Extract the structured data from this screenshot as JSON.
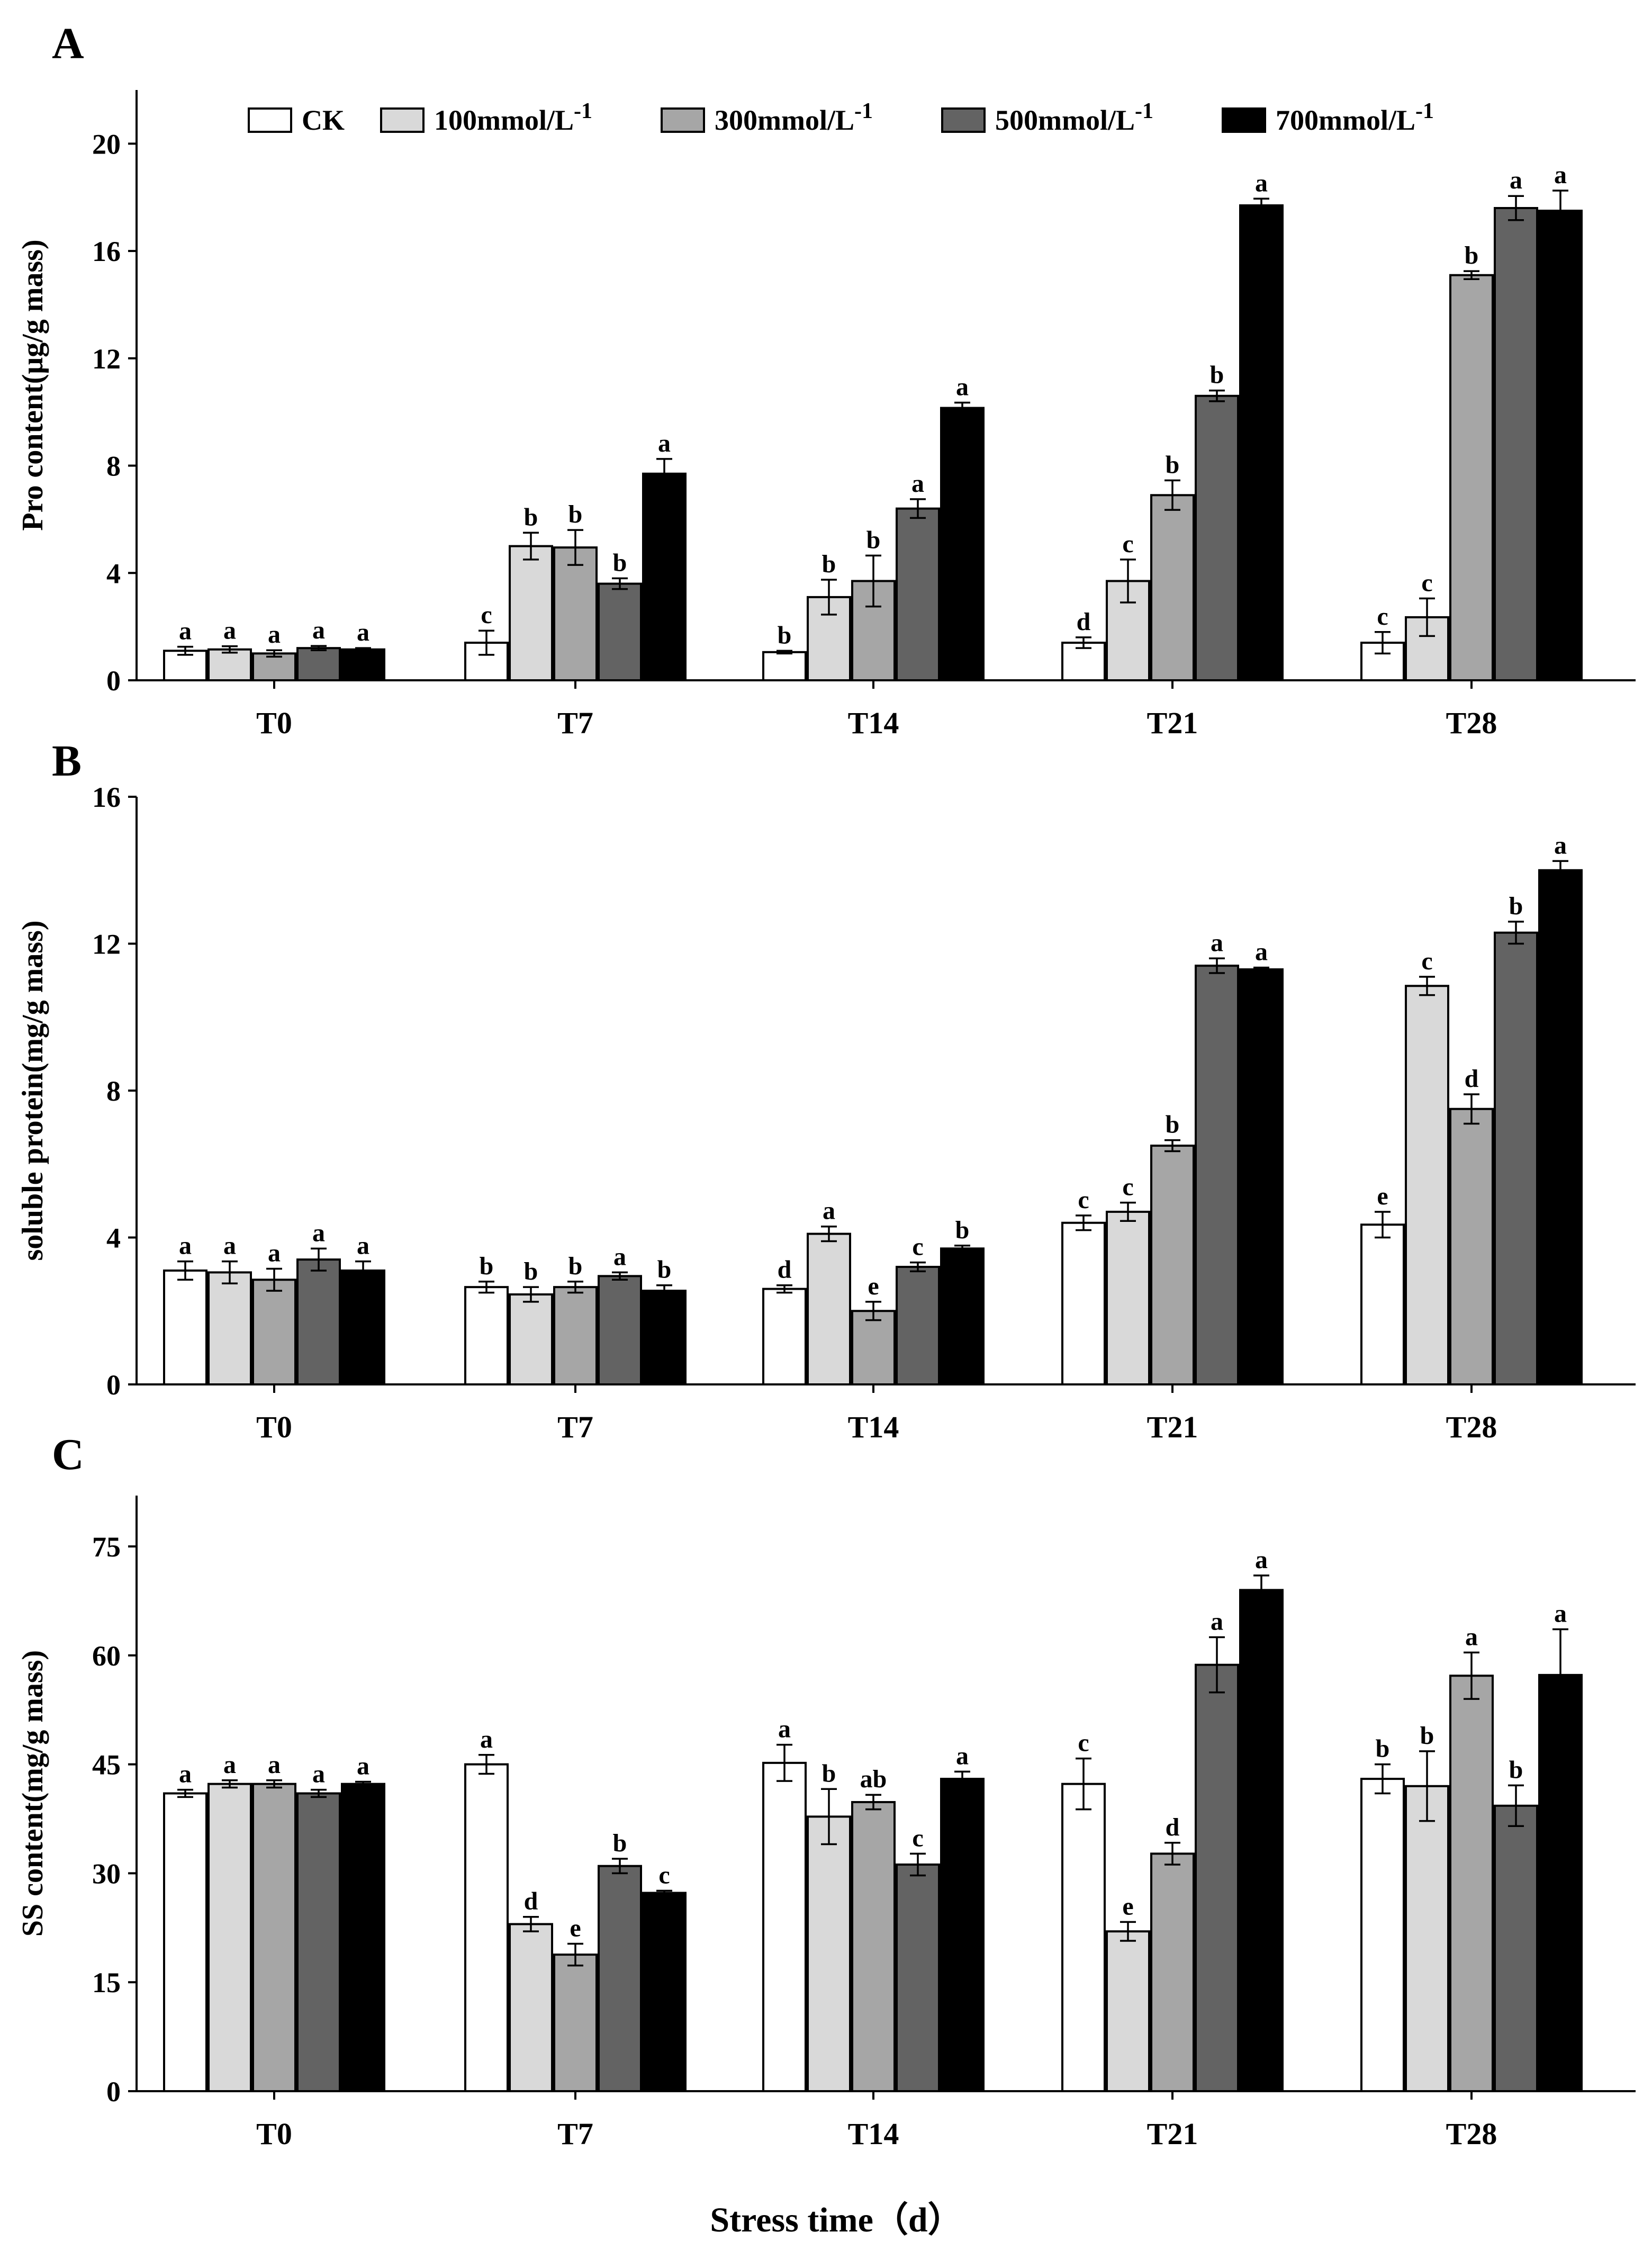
{
  "chart_data": [
    {
      "type": "bar",
      "panel": "A",
      "categories": [
        "T0",
        "T7",
        "T14",
        "T21",
        "T28"
      ],
      "ylabel": "Pro content(μg/g mass)",
      "ylim": [
        0,
        22
      ],
      "yticks": [
        0,
        4,
        8,
        12,
        16,
        20
      ],
      "series": [
        {
          "name": "CK",
          "values": [
            1.1,
            1.4,
            1.05,
            1.4,
            1.4
          ],
          "errors": [
            0.15,
            0.45,
            0.05,
            0.2,
            0.4
          ],
          "letters": [
            "a",
            "c",
            "b",
            "d",
            "c"
          ]
        },
        {
          "name": "100mmol/L",
          "values": [
            1.15,
            5.0,
            3.1,
            3.7,
            2.35
          ],
          "errors": [
            0.12,
            0.5,
            0.65,
            0.8,
            0.7
          ],
          "letters": [
            "a",
            "b",
            "b",
            "c",
            "c"
          ]
        },
        {
          "name": "300mmol/L",
          "values": [
            1.0,
            4.95,
            3.7,
            6.9,
            15.1
          ],
          "errors": [
            0.12,
            0.65,
            0.95,
            0.55,
            0.15
          ],
          "letters": [
            "a",
            "b",
            "b",
            "b",
            "b"
          ]
        },
        {
          "name": "500mmol/L",
          "values": [
            1.2,
            3.6,
            6.4,
            10.6,
            17.6
          ],
          "errors": [
            0.08,
            0.2,
            0.35,
            0.2,
            0.45
          ],
          "letters": [
            "a",
            "b",
            "a",
            "b",
            "a"
          ]
        },
        {
          "name": "700mmol/L",
          "values": [
            1.15,
            7.7,
            10.15,
            17.7,
            17.5
          ],
          "errors": [
            0.05,
            0.55,
            0.2,
            0.25,
            0.75
          ],
          "letters": [
            "a",
            "a",
            "a",
            "a",
            "a"
          ]
        }
      ]
    },
    {
      "type": "bar",
      "panel": "B",
      "categories": [
        "T0",
        "T7",
        "T14",
        "T21",
        "T28"
      ],
      "ylabel": "soluble protein(mg/g mass)",
      "ylim": [
        0,
        16
      ],
      "yticks": [
        0,
        4,
        8,
        12,
        16
      ],
      "series": [
        {
          "name": "CK",
          "values": [
            3.1,
            2.65,
            2.6,
            4.4,
            4.35
          ],
          "errors": [
            0.25,
            0.15,
            0.1,
            0.2,
            0.35
          ],
          "letters": [
            "a",
            "b",
            "d",
            "c",
            "e"
          ]
        },
        {
          "name": "100mmol/L",
          "values": [
            3.05,
            2.45,
            4.1,
            4.7,
            10.85
          ],
          "errors": [
            0.3,
            0.2,
            0.2,
            0.25,
            0.25
          ],
          "letters": [
            "a",
            "b",
            "a",
            "c",
            "c"
          ]
        },
        {
          "name": "300mmol/L",
          "values": [
            2.85,
            2.65,
            2.0,
            6.5,
            7.5
          ],
          "errors": [
            0.3,
            0.15,
            0.25,
            0.15,
            0.4
          ],
          "letters": [
            "a",
            "b",
            "e",
            "b",
            "d"
          ]
        },
        {
          "name": "500mmol/L",
          "values": [
            3.4,
            2.95,
            3.2,
            11.4,
            12.3
          ],
          "errors": [
            0.3,
            0.1,
            0.12,
            0.2,
            0.3
          ],
          "letters": [
            "a",
            "a",
            "c",
            "a",
            "b"
          ]
        },
        {
          "name": "700mmol/L",
          "values": [
            3.1,
            2.55,
            3.7,
            11.3,
            14.0
          ],
          "errors": [
            0.25,
            0.15,
            0.08,
            0.05,
            0.25
          ],
          "letters": [
            "a",
            "b",
            "b",
            "a",
            "a"
          ]
        }
      ]
    },
    {
      "type": "bar",
      "panel": "C",
      "categories": [
        "T0",
        "T7",
        "T14",
        "T21",
        "T28"
      ],
      "ylabel": "SS content(mg/g mass)",
      "xlabel": "Stress time（d）",
      "ylim": [
        0,
        82
      ],
      "yticks": [
        0,
        15,
        30,
        45,
        60,
        75
      ],
      "series": [
        {
          "name": "CK",
          "values": [
            41.0,
            45.0,
            45.2,
            42.3,
            43.0
          ],
          "errors": [
            0.5,
            1.3,
            2.5,
            3.5,
            2.0
          ],
          "letters": [
            "a",
            "a",
            "a",
            "c",
            "b"
          ]
        },
        {
          "name": "100mmol/L",
          "values": [
            42.3,
            23.0,
            37.8,
            22.0,
            42.0
          ],
          "errors": [
            0.5,
            1.0,
            3.8,
            1.3,
            4.8
          ],
          "letters": [
            "a",
            "d",
            "b",
            "e",
            "b"
          ]
        },
        {
          "name": "300mmol/L",
          "values": [
            42.3,
            18.8,
            39.8,
            32.7,
            57.2
          ],
          "errors": [
            0.5,
            1.5,
            1.0,
            1.5,
            3.2
          ],
          "letters": [
            "a",
            "e",
            "ab",
            "d",
            "a"
          ]
        },
        {
          "name": "500mmol/L",
          "values": [
            41.0,
            31.0,
            31.2,
            58.7,
            39.3
          ],
          "errors": [
            0.5,
            1.0,
            1.5,
            3.8,
            2.8
          ],
          "letters": [
            "a",
            "b",
            "c",
            "a",
            "b"
          ]
        },
        {
          "name": "700mmol/L",
          "values": [
            42.3,
            27.3,
            43.0,
            69.0,
            57.3
          ],
          "errors": [
            0.3,
            0.3,
            1.0,
            2.0,
            6.3
          ],
          "letters": [
            "a",
            "c",
            "a",
            "a",
            "a"
          ]
        }
      ]
    }
  ],
  "legend": [
    {
      "label": "CK",
      "sup": "",
      "color": "#ffffff"
    },
    {
      "label": "100mmol/L",
      "sup": "-1",
      "color": "#d9d9d9"
    },
    {
      "label": "300mmol/L",
      "sup": "-1",
      "color": "#a6a6a6"
    },
    {
      "label": "500mmol/L",
      "sup": "-1",
      "color": "#636363"
    },
    {
      "label": "700mmol/L",
      "sup": "-1",
      "color": "#000000"
    }
  ],
  "panel_letters": [
    "A",
    "B",
    "C"
  ],
  "xlabel": "Stress time（d）"
}
